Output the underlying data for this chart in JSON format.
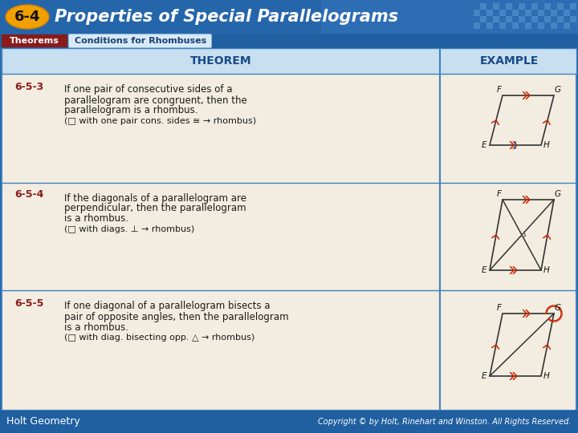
{
  "title": "Properties of Special Parallelograms",
  "title_number": "6-4",
  "tab1": "Theorems",
  "tab2": "Conditions for Rhombuses",
  "col1_header": "THEOREM",
  "col2_header": "EXAMPLE",
  "theorems": [
    {
      "number": "6-5-3",
      "lines": [
        "If one pair of consecutive sides of a",
        "parallelogram are congruent, then the",
        "parallelogram is a rhombus.",
        "(□ with one pair cons. sides ≅ → rhombus)"
      ]
    },
    {
      "number": "6-5-4",
      "lines": [
        "If the diagonals of a parallelogram are",
        "perpendicular, then the parallelogram",
        "is a rhombus.",
        "(□ with diags. ⊥ → rhombus)"
      ]
    },
    {
      "number": "6-5-5",
      "lines": [
        "If one diagonal of a parallelogram bisects a",
        "pair of opposite angles, then the parallelogram",
        "is a rhombus.",
        "(□ with diag. bisecting opp. △ → rhombus)"
      ]
    }
  ],
  "bg_header": "#2060a0",
  "bg_tab_theorems": "#8b1a1a",
  "bg_tab_conditions": "#d8eaf8",
  "bg_table_header": "#c8dff0",
  "bg_row_light": "#f2ede0",
  "bg_white": "#ffffff",
  "bg_divider_blue": "#4080c0",
  "text_dark": "#1a1a1a",
  "text_number": "#8b1a1a",
  "text_white": "#ffffff",
  "text_header_blue": "#1a4a8a",
  "footer_bg": "#2060a0",
  "footer_left": "Holt Geometry",
  "footer_right": "Copyright © by Holt, Rinehart and Winston. All Rights Reserved.",
  "rhombus_stroke": "#333333",
  "tick_red": "#cc2200"
}
